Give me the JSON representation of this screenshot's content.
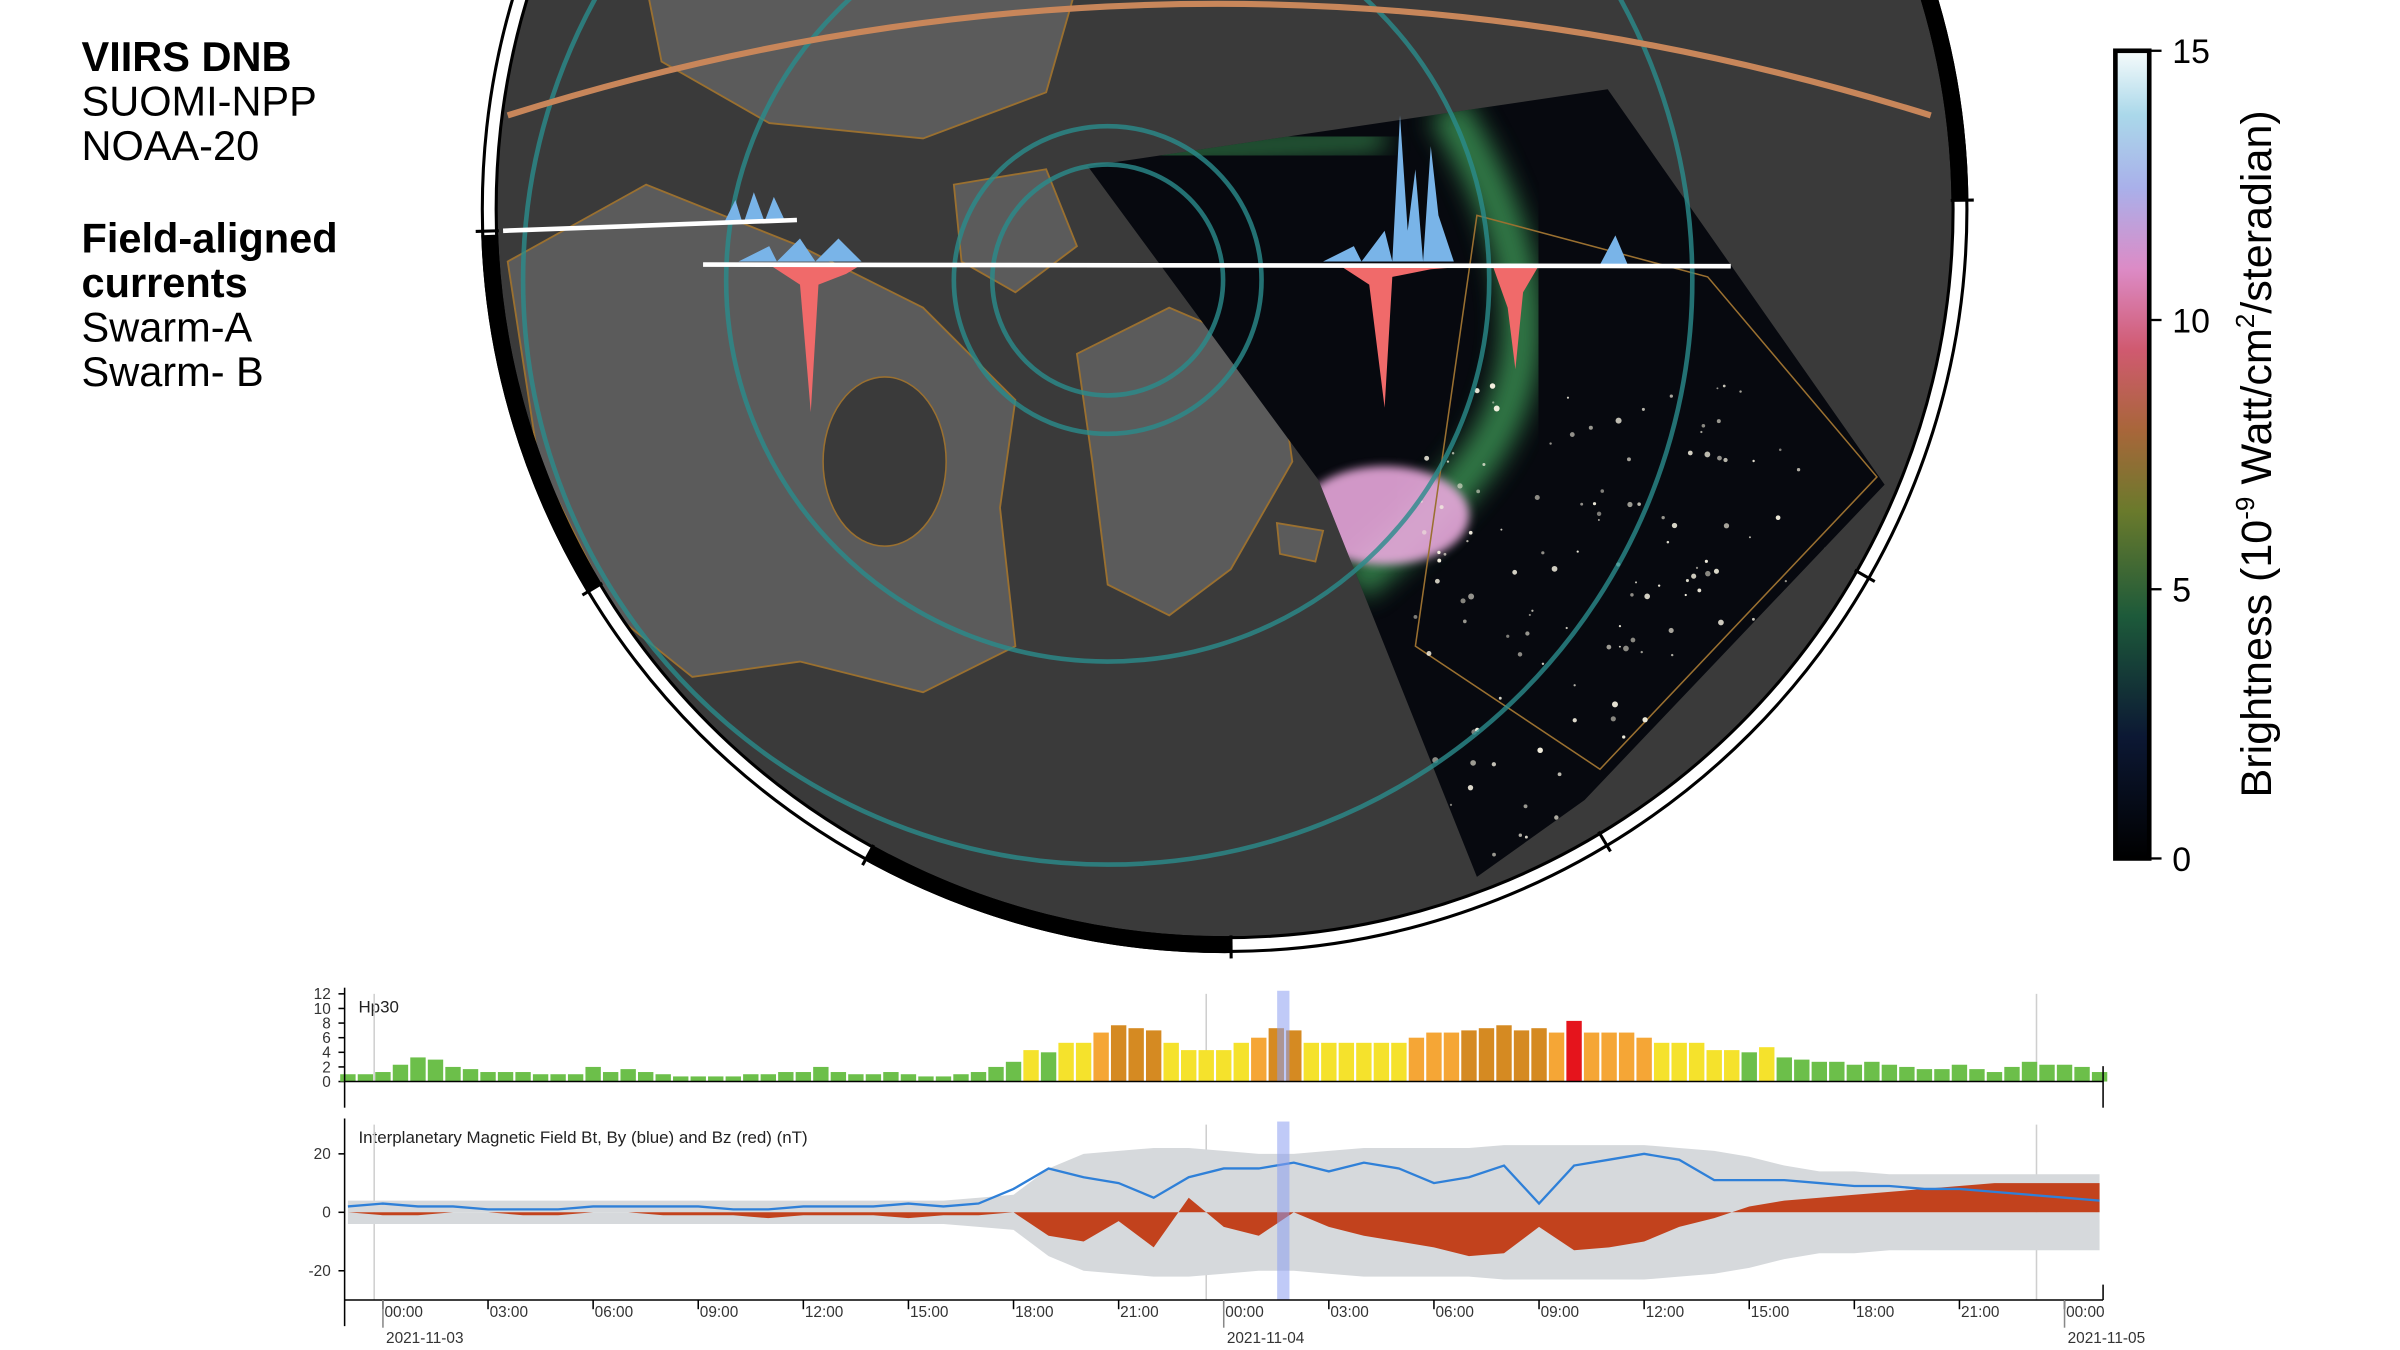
{
  "legend": {
    "viirs_title": "VIIRS DNB",
    "viirs_items": [
      "SUOMI-NPP",
      "NOAA-20"
    ],
    "fac_title": [
      "Field-aligned",
      "currents"
    ],
    "fac_items": [
      "Swarm-A",
      "Swarm- B"
    ]
  },
  "colorbar": {
    "label": [
      "Brightness (10",
      "-9",
      " Watt/cm",
      "2",
      "/steradian)"
    ],
    "lim": [
      0,
      15
    ],
    "ticks": [
      0,
      5,
      10,
      15
    ]
  },
  "chart_data": [
    {
      "type": "bar",
      "title": "Hp30",
      "x": [
        -1,
        -0.5,
        0,
        0.5,
        1,
        1.5,
        2,
        2.5,
        3,
        3.5,
        4,
        4.5,
        5,
        5.5,
        6,
        6.5,
        7,
        7.5,
        8,
        8.5,
        9,
        9.5,
        10,
        10.5,
        11,
        11.5,
        12,
        12.5,
        13,
        13.5,
        14,
        14.5,
        15,
        15.5,
        16,
        16.5,
        17,
        17.5,
        18,
        18.5,
        19,
        19.5,
        20,
        20.5,
        21,
        21.5,
        22,
        22.5,
        23,
        23.5,
        24,
        24.5,
        25,
        25.5,
        26,
        26.5,
        27,
        27.5,
        28,
        28.5,
        29,
        29.5,
        30,
        30.5,
        31,
        31.5,
        32,
        32.5,
        33,
        33.5,
        34,
        34.5,
        35,
        35.5,
        36,
        36.5,
        37,
        37.5,
        38,
        38.5,
        39,
        39.5,
        40,
        40.5,
        41,
        41.5,
        42,
        42.5,
        43,
        43.5,
        44,
        44.5,
        45,
        45.5,
        46,
        46.5,
        47,
        47.5,
        48,
        48.5,
        49
      ],
      "values": [
        1,
        1,
        1.3,
        2.3,
        3.3,
        3,
        2,
        1.7,
        1.3,
        1.3,
        1.3,
        1,
        1,
        1,
        2,
        1.3,
        1.7,
        1.3,
        1,
        0.7,
        0.7,
        0.7,
        0.7,
        1,
        1,
        1.3,
        1.3,
        2,
        1.3,
        1,
        1,
        1.3,
        1,
        0.7,
        0.7,
        1,
        1.3,
        2,
        2.7,
        4.3,
        4,
        5.3,
        5.3,
        6.7,
        7.7,
        7.3,
        7,
        5.3,
        4.3,
        4.3,
        4.3,
        5.3,
        6,
        7.3,
        7,
        5.3,
        5.3,
        5.3,
        5.3,
        5.3,
        5.3,
        6,
        6.7,
        6.7,
        7,
        7.3,
        7.7,
        7,
        7.3,
        6.7,
        8.3,
        6.7,
        6.7,
        6.7,
        6,
        5.3,
        5.3,
        5.3,
        4.3,
        4.3,
        4,
        4.7,
        3.3,
        3,
        2.7,
        2.7,
        2.3,
        2.7,
        2.3,
        2,
        1.7,
        1.7,
        2.3,
        1.7,
        1.3,
        2,
        2.7,
        2.3,
        2.3,
        2,
        1.3
      ],
      "level_colors": [
        {
          "from": 0,
          "color": "#6cbf4a"
        },
        {
          "from": 4.3,
          "color": "#f5e22c"
        },
        {
          "from": 5.7,
          "color": "#f5a636"
        },
        {
          "from": 7,
          "color": "#d58a22"
        },
        {
          "from": 8,
          "color": "#e5141c"
        }
      ],
      "xlim": [
        -1.05,
        49.1
      ],
      "ylim": [
        0,
        12
      ],
      "yticks": [
        0,
        2,
        4,
        6,
        8,
        10,
        12
      ],
      "highlight_x": 25.7,
      "reference_x": [
        -0.25,
        23.5,
        47.2
      ]
    },
    {
      "type": "line",
      "title": "Interplanetary Magnetic Field Bt, By (blue) and Bz (red) (nT)",
      "x": [
        -1,
        0,
        1,
        2,
        3,
        4,
        5,
        6,
        7,
        8,
        9,
        10,
        11,
        12,
        13,
        14,
        15,
        16,
        17,
        18,
        19,
        20,
        21,
        22,
        23,
        24,
        25,
        26,
        27,
        28,
        29,
        30,
        31,
        32,
        33,
        34,
        35,
        36,
        37,
        38,
        39,
        40,
        41,
        42,
        43,
        44,
        45,
        46,
        47,
        48,
        49
      ],
      "series": [
        {
          "style": "envelope",
          "color": "#d6d9dc",
          "values": [
            4,
            4,
            4,
            4,
            4,
            4,
            4,
            4,
            4,
            4,
            4,
            4,
            4,
            4,
            4,
            4,
            4,
            4,
            5,
            6,
            15,
            20,
            21,
            22,
            22,
            21,
            20,
            20,
            21,
            22,
            22,
            22,
            22,
            23,
            23,
            23,
            23,
            23,
            22,
            21,
            19,
            16,
            14,
            14,
            13,
            13,
            13,
            13,
            13,
            13,
            13
          ]
        },
        {
          "style": "area",
          "color": "#c2421d",
          "values": [
            0,
            -1,
            -1,
            0,
            0,
            -1,
            -1,
            0,
            0,
            -1,
            -1,
            -1,
            -2,
            -1,
            -1,
            -1,
            -2,
            -1,
            -1,
            0,
            -8,
            -10,
            -3,
            -12,
            5,
            -5,
            -8,
            0,
            -5,
            -8,
            -10,
            -12,
            -15,
            -14,
            -5,
            -13,
            -12,
            -10,
            -5,
            -2,
            2,
            4,
            5,
            6,
            7,
            8,
            9,
            10,
            10,
            10,
            10
          ]
        },
        {
          "style": "line",
          "color": "#2f80d8",
          "values": [
            2,
            3,
            2,
            2,
            1,
            1,
            1,
            2,
            2,
            2,
            2,
            1,
            1,
            2,
            2,
            2,
            3,
            2,
            3,
            8,
            15,
            12,
            10,
            5,
            12,
            15,
            15,
            17,
            14,
            17,
            15,
            10,
            12,
            16,
            3,
            16,
            18,
            20,
            18,
            11,
            11,
            11,
            10,
            9,
            9,
            8,
            8,
            7,
            6,
            5,
            4
          ]
        }
      ],
      "xlim": [
        -1.05,
        49.1
      ],
      "ylim": [
        -30,
        30
      ],
      "yticks": [
        -20,
        0,
        20
      ],
      "xticks": [
        {
          "value": 0,
          "label": "00:00"
        },
        {
          "value": 3,
          "label": "03:00"
        },
        {
          "value": 6,
          "label": "06:00"
        },
        {
          "value": 9,
          "label": "09:00"
        },
        {
          "value": 12,
          "label": "12:00"
        },
        {
          "value": 15,
          "label": "15:00"
        },
        {
          "value": 18,
          "label": "18:00"
        },
        {
          "value": 21,
          "label": "21:00"
        },
        {
          "value": 24,
          "label": "00:00"
        },
        {
          "value": 27,
          "label": "03:00"
        },
        {
          "value": 30,
          "label": "06:00"
        },
        {
          "value": 33,
          "label": "09:00"
        },
        {
          "value": 36,
          "label": "12:00"
        },
        {
          "value": 39,
          "label": "15:00"
        },
        {
          "value": 42,
          "label": "18:00"
        },
        {
          "value": 45,
          "label": "21:00"
        },
        {
          "value": 48,
          "label": "00:00"
        }
      ],
      "date_ticks": [
        {
          "value": 0,
          "label": "2021-11-03"
        },
        {
          "value": 24,
          "label": "2021-11-04"
        },
        {
          "value": 48,
          "label": "2021-11-05"
        }
      ],
      "highlight_x": 25.7,
      "reference_x": [
        -0.25,
        23.5,
        47.2
      ]
    }
  ]
}
